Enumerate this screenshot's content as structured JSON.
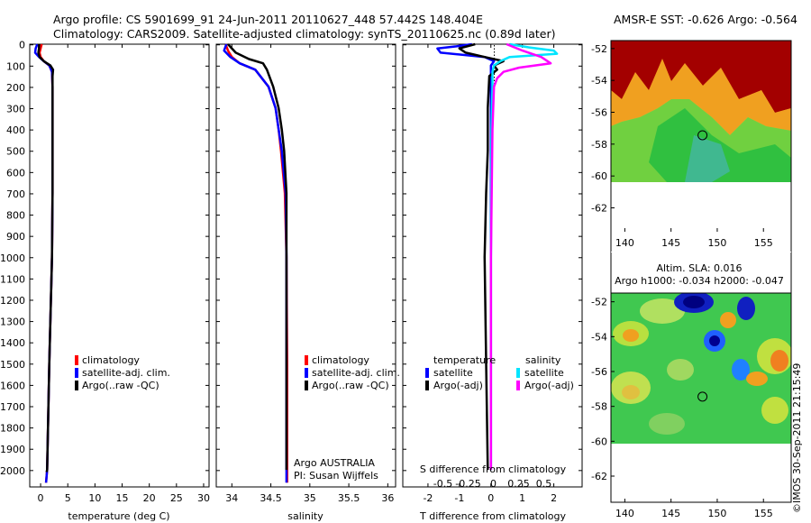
{
  "title_line1": "Argo profile: CS 5901699_91 24-Jun-2011 20110627_448 57.442S 148.404E",
  "title_line2": "Climatology: CARS2009. Satellite-adjusted climatology: synTS_20110625.nc (0.89d later)",
  "colors": {
    "climatology": "#ff0000",
    "satellite": "#0000ff",
    "argo": "#000000",
    "sal_satellite": "#00e5ff",
    "sal_argo": "#ff00ff"
  },
  "chart_data": [
    {
      "type": "line",
      "id": "temperature",
      "xlabel": "temperature (deg C)",
      "ylabel": "",
      "xlim": [
        -2,
        31
      ],
      "ylim": [
        2080,
        0
      ],
      "xticks": [
        {
          "v": 0,
          "t": "0"
        },
        {
          "v": 5,
          "t": "5"
        },
        {
          "v": 10,
          "t": "10"
        },
        {
          "v": 15,
          "t": "15"
        },
        {
          "v": 20,
          "t": "20"
        },
        {
          "v": 25,
          "t": "25"
        },
        {
          "v": 30,
          "t": "30"
        }
      ],
      "yticks": [
        0,
        100,
        200,
        300,
        400,
        500,
        600,
        700,
        800,
        900,
        1000,
        1100,
        1200,
        1300,
        1400,
        1500,
        1600,
        1700,
        1800,
        1900,
        2000
      ],
      "legend": [
        "climatology",
        "satellite-adj. clim.",
        "Argo(..raw -QC)"
      ],
      "series": [
        {
          "name": "climatology",
          "color": "#ff0000",
          "depth": [
            0,
            20,
            40,
            60,
            80,
            100,
            130,
            200,
            400,
            700,
            1000,
            1500,
            2000,
            2060
          ],
          "values": [
            0.2,
            0.0,
            -0.2,
            0.0,
            0.6,
            1.6,
            2.1,
            2.2,
            2.2,
            2.2,
            2.1,
            1.6,
            1.2,
            1.0
          ]
        },
        {
          "name": "satellite-adj. clim.",
          "color": "#0000ff",
          "depth": [
            0,
            20,
            40,
            60,
            80,
            100,
            130,
            200,
            400,
            700,
            1000,
            1500,
            2000,
            2060
          ],
          "values": [
            -0.6,
            -0.9,
            -1.0,
            -0.3,
            0.6,
            1.6,
            2.1,
            2.2,
            2.2,
            2.2,
            2.1,
            1.6,
            1.2,
            1.0
          ]
        },
        {
          "name": "Argo(..raw -QC)",
          "color": "#000000",
          "depth": [
            0,
            20,
            40,
            60,
            80,
            100,
            120,
            150,
            400,
            700,
            1000,
            1500,
            2000,
            2010
          ],
          "values": [
            -0.3,
            -0.3,
            -0.4,
            -0.2,
            0.6,
            1.8,
            2.3,
            2.2,
            2.2,
            2.2,
            2.1,
            1.6,
            1.2,
            1.1
          ]
        }
      ]
    },
    {
      "type": "line",
      "id": "salinity",
      "xlabel": "salinity",
      "xlim": [
        33.8,
        36.1
      ],
      "ylim": [
        2080,
        0
      ],
      "xticks": [
        {
          "v": 34,
          "t": "34"
        },
        {
          "v": 34.5,
          "t": "34.5"
        },
        {
          "v": 35,
          "t": "35"
        },
        {
          "v": 35.5,
          "t": "35.5"
        },
        {
          "v": 36,
          "t": "36"
        }
      ],
      "legend": [
        "climatology",
        "satellite-adj. clim.",
        "Argo(..raw -QC)"
      ],
      "annotation": [
        "Argo AUSTRALIA",
        "PI: Susan Wijffels"
      ],
      "series": [
        {
          "name": "climatology",
          "color": "#ff0000",
          "depth": [
            0,
            30,
            60,
            90,
            120,
            200,
            300,
            400,
            500,
            700,
            1000,
            1500,
            2000,
            2060
          ],
          "values": [
            33.92,
            33.95,
            34.0,
            34.1,
            34.3,
            34.47,
            34.56,
            34.6,
            34.63,
            34.68,
            34.7,
            34.71,
            34.71,
            34.71
          ]
        },
        {
          "name": "satellite-adj. clim.",
          "color": "#0000ff",
          "depth": [
            0,
            30,
            60,
            90,
            120,
            200,
            300,
            400,
            500,
            700,
            1000,
            1500,
            2000,
            2060
          ],
          "values": [
            33.93,
            33.9,
            33.98,
            34.1,
            34.3,
            34.47,
            34.56,
            34.6,
            34.64,
            34.69,
            34.7,
            34.7,
            34.7,
            34.7
          ]
        },
        {
          "name": "Argo(..raw -QC)",
          "color": "#000000",
          "depth": [
            0,
            40,
            70,
            90,
            120,
            200,
            300,
            400,
            500,
            700,
            1000,
            1500,
            2000
          ],
          "values": [
            33.95,
            34.05,
            34.22,
            34.4,
            34.45,
            34.53,
            34.6,
            34.64,
            34.67,
            34.7,
            34.7,
            34.7,
            34.7
          ]
        }
      ]
    },
    {
      "type": "line",
      "id": "differences",
      "xlabel": "T difference from climatology",
      "xlabel_top": "S difference from climatology",
      "xlim": [
        -2.8,
        2.9
      ],
      "ylim": [
        2080,
        0
      ],
      "xticks": [
        {
          "v": -2,
          "t": "-2"
        },
        {
          "v": -1,
          "t": "-1"
        },
        {
          "v": 0,
          "t": "0"
        },
        {
          "v": 1,
          "t": "1"
        },
        {
          "v": 2,
          "t": "2"
        }
      ],
      "xticks_top": [
        {
          "v": -0.5,
          "t": "-0.5"
        },
        {
          "v": -0.25,
          "t": "-0.25"
        },
        {
          "v": 0,
          "t": "0"
        },
        {
          "v": 0.25,
          "t": "0.25"
        },
        {
          "v": 0.5,
          "t": "0.5"
        }
      ],
      "legend_left_title": "temperature",
      "legend_right_title": "salinity",
      "legend_left": [
        "satellite",
        "Argo(-adj)"
      ],
      "legend_right": [
        "satellite",
        "Argo(-adj)"
      ],
      "series": [
        {
          "name": "T satellite",
          "color": "#0000ff",
          "depth": [
            0,
            10,
            20,
            40,
            60,
            80,
            100,
            130,
            200,
            500,
            1000,
            1500,
            2000
          ],
          "values": [
            -0.6,
            -1.1,
            -1.7,
            -1.6,
            -0.2,
            0.1,
            0.0,
            0.0,
            0.0,
            0.0,
            0.0,
            0.0,
            0.0
          ]
        },
        {
          "name": "T Argo(-adj)",
          "color": "#000000",
          "depth": [
            0,
            20,
            40,
            60,
            80,
            100,
            120,
            150,
            300,
            500,
            700,
            1000,
            1500,
            2000
          ],
          "values": [
            -0.5,
            -1.0,
            -0.8,
            -0.2,
            0.4,
            0.1,
            0.2,
            -0.05,
            -0.1,
            -0.1,
            -0.15,
            -0.2,
            -0.15,
            -0.1
          ]
        },
        {
          "name": "S satellite",
          "color": "#00e5ff",
          "depth": [
            0,
            15,
            30,
            45,
            60,
            80,
            100,
            130,
            200,
            400,
            1000,
            1500,
            2000
          ],
          "values": [
            0.6,
            1.2,
            2.0,
            2.1,
            0.6,
            0.3,
            0.1,
            0.05,
            0.05,
            0.02,
            0.0,
            0.0,
            0.0
          ]
        },
        {
          "name": "S Argo(-adj)",
          "color": "#ff00ff",
          "depth": [
            0,
            30,
            60,
            90,
            110,
            130,
            160,
            200,
            400,
            1000,
            1500,
            2000
          ],
          "values": [
            0.5,
            1.0,
            1.6,
            1.9,
            0.9,
            0.4,
            0.2,
            0.1,
            0.05,
            0.0,
            0.0,
            0.0
          ]
        }
      ]
    },
    {
      "type": "heatmap",
      "id": "sst_map",
      "title": "AMSR-E SST: -0.626 Argo: -0.564",
      "xticks": [
        140,
        145,
        150,
        155
      ],
      "yticks": [
        -52,
        -54,
        -56,
        -58,
        -60,
        -62
      ],
      "xlim": [
        138.5,
        158
      ],
      "ylim": [
        -63.5,
        -51.5
      ],
      "data_ylim": [
        -60,
        -51.5
      ],
      "marker": {
        "lon": 148.404,
        "lat": -57.442
      }
    },
    {
      "type": "heatmap",
      "id": "sla_map",
      "title": "Altim. SLA: 0.016",
      "subtitle": "Argo h1000: -0.034 h2000: -0.047",
      "xticks": [
        140,
        145,
        150,
        155
      ],
      "yticks": [
        -52,
        -54,
        -56,
        -58,
        -60,
        -62
      ],
      "xlim": [
        138.5,
        158
      ],
      "ylim": [
        -63.5,
        -51.5
      ],
      "data_ylim": [
        -60,
        -51.5
      ],
      "marker": {
        "lon": 148.404,
        "lat": -57.442
      }
    }
  ],
  "watermark": "©IMOS 30-Sep-2011 21:15:49"
}
